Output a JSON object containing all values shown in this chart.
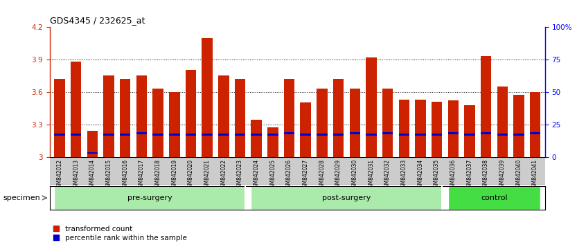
{
  "title": "GDS4345 / 232625_at",
  "samples": [
    "GSM842012",
    "GSM842013",
    "GSM842014",
    "GSM842015",
    "GSM842016",
    "GSM842017",
    "GSM842018",
    "GSM842019",
    "GSM842020",
    "GSM842021",
    "GSM842022",
    "GSM842023",
    "GSM842024",
    "GSM842025",
    "GSM842026",
    "GSM842027",
    "GSM842028",
    "GSM842029",
    "GSM842030",
    "GSM842031",
    "GSM842032",
    "GSM842033",
    "GSM842034",
    "GSM842035",
    "GSM842036",
    "GSM842037",
    "GSM842038",
    "GSM842039",
    "GSM842040",
    "GSM842041"
  ],
  "transformed_count": [
    3.72,
    3.88,
    3.24,
    3.75,
    3.72,
    3.75,
    3.63,
    3.6,
    3.8,
    4.1,
    3.75,
    3.72,
    3.34,
    3.27,
    3.72,
    3.5,
    3.63,
    3.72,
    3.63,
    3.92,
    3.63,
    3.53,
    3.53,
    3.51,
    3.52,
    3.48,
    3.93,
    3.65,
    3.57,
    3.6
  ],
  "percentile_rank": [
    17,
    17,
    3,
    17,
    17,
    18,
    17,
    17,
    17,
    17,
    17,
    17,
    17,
    17,
    18,
    17,
    17,
    17,
    18,
    17,
    18,
    17,
    17,
    17,
    18,
    17,
    18,
    17,
    17,
    18
  ],
  "groups": [
    {
      "label": "pre-surgery",
      "start": 0,
      "end": 11,
      "color": "#AAEAAA"
    },
    {
      "label": "post-surgery",
      "start": 12,
      "end": 23,
      "color": "#AAEAAA"
    },
    {
      "label": "control",
      "start": 24,
      "end": 29,
      "color": "#44DD44"
    }
  ],
  "ymin": 3.0,
  "ymax": 4.2,
  "yticks": [
    3.0,
    3.3,
    3.6,
    3.9,
    4.2
  ],
  "ytick_labels_left": [
    "3",
    "3.3",
    "3.6",
    "3.9",
    "4.2"
  ],
  "ytick_labels_right": [
    "0",
    "25",
    "50",
    "75",
    "100%"
  ],
  "bar_color_red": "#CC2200",
  "bar_color_blue": "#0000CC",
  "background_color": "#FFFFFF",
  "plot_bg_color": "#FFFFFF",
  "xticklabel_bg_color": "#CCCCCC",
  "group_label_fontsize": 8,
  "tick_fontsize": 7.5,
  "sample_fontsize": 5.5
}
